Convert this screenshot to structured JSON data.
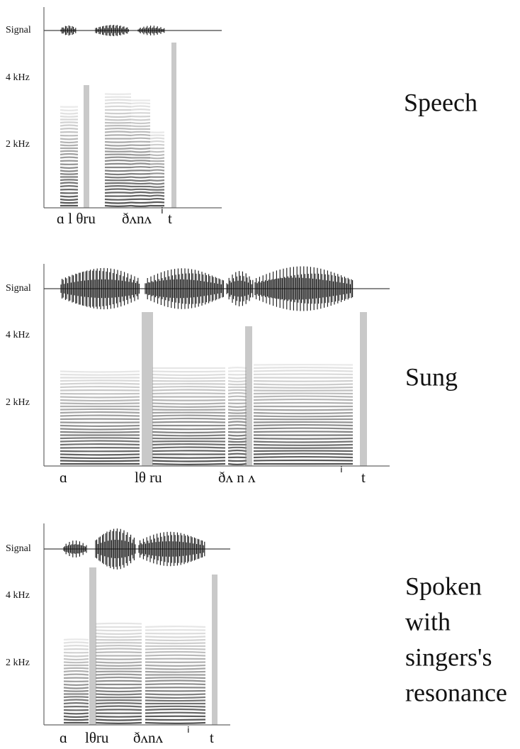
{
  "panels": [
    {
      "title": [
        "Speech"
      ],
      "signal_label": "Signal",
      "axis_labels": [
        "4 kHz",
        "2 kHz"
      ],
      "phonemes": [
        "ɑ l θru",
        "ðʌnʌ",
        "ⁱ",
        "t"
      ]
    },
    {
      "title": [
        "Sung"
      ],
      "signal_label": "Signal",
      "axis_labels": [
        "4 kHz",
        "2 kHz"
      ],
      "phonemes": [
        "ɑ",
        "lθ ru",
        "ðʌ n ʌ",
        "ⁱ",
        "t"
      ]
    },
    {
      "title": [
        "Spoken",
        "with",
        "singers's",
        "resonance"
      ],
      "signal_label": "Signal",
      "axis_labels": [
        "4 kHz",
        "2 kHz"
      ],
      "phonemes": [
        "ɑ",
        "lθru",
        "ðʌnʌ",
        "ⁱ",
        "t"
      ]
    }
  ]
}
